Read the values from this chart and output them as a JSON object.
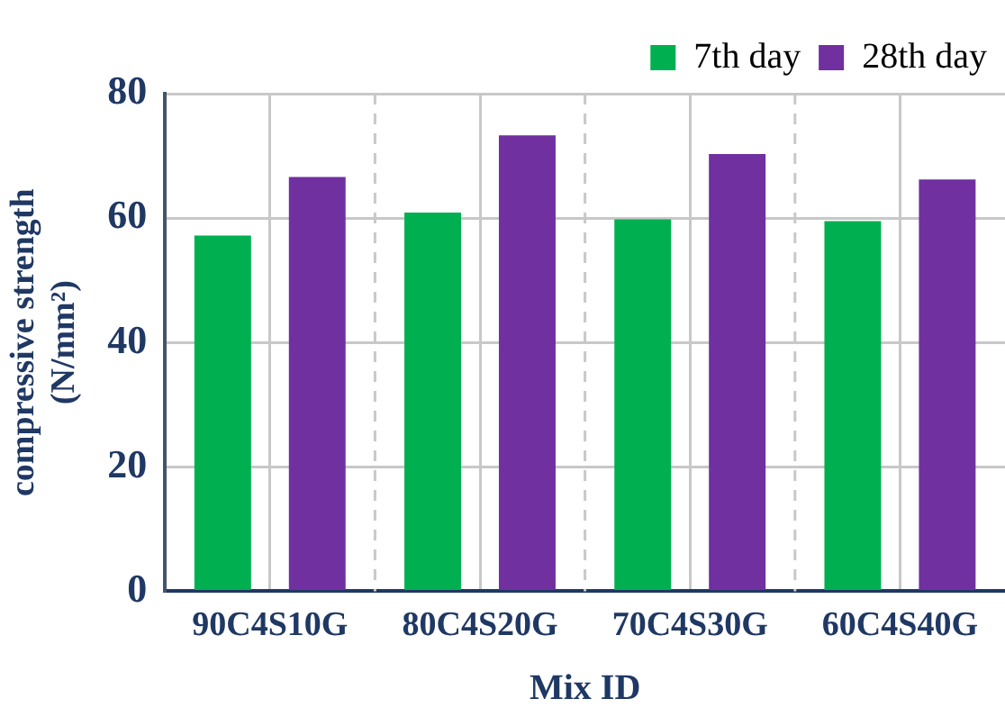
{
  "chart_data": {
    "type": "bar",
    "xlabel": "Mix ID",
    "ylabel": "compressive strength (N/mm²)",
    "categories": [
      "90C4S10G",
      "80C4S20G",
      "70C4S30G",
      "60C4S40G"
    ],
    "series": [
      {
        "name": "7th day",
        "color": "#00b050",
        "values": [
          57.2,
          60.9,
          59.8,
          59.5
        ]
      },
      {
        "name": "28th day",
        "color": "#7030a0",
        "values": [
          66.6,
          73.3,
          70.3,
          66.2
        ]
      }
    ],
    "ylim": [
      0,
      80
    ],
    "yticks": [
      0,
      20,
      40,
      60,
      80
    ],
    "grid": true,
    "legend": "top right"
  }
}
